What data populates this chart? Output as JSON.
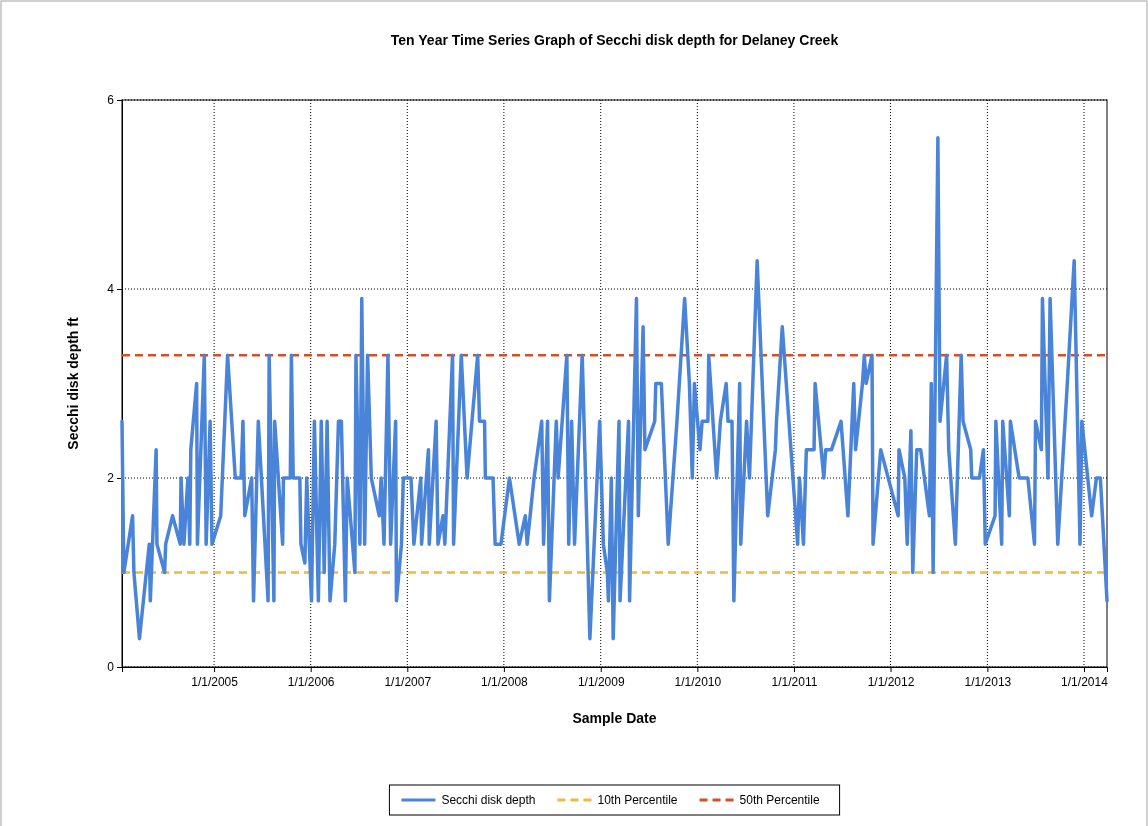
{
  "chart_data": {
    "type": "line",
    "title": "Ten Year Time Series Graph of Secchi disk depth for Delaney Creek",
    "xlabel": "Sample Date",
    "ylabel": "Secchi disk depth ft",
    "xlim": [
      "2004-01-19",
      "2014-03-29"
    ],
    "xticks": [
      {
        "value": "2005-01-01",
        "label": "1/1/2005"
      },
      {
        "value": "2006-01-01",
        "label": "1/1/2006"
      },
      {
        "value": "2007-01-01",
        "label": "1/1/2007"
      },
      {
        "value": "2008-01-01",
        "label": "1/1/2008"
      },
      {
        "value": "2009-01-01",
        "label": "1/1/2009"
      },
      {
        "value": "2010-01-01",
        "label": "1/1/2010"
      },
      {
        "value": "2011-01-01",
        "label": "1/1/2011"
      },
      {
        "value": "2012-01-01",
        "label": "1/1/2012"
      },
      {
        "value": "2013-01-01",
        "label": "1/1/2013"
      },
      {
        "value": "2014-01-01",
        "label": "1/1/2014"
      }
    ],
    "ylim": [
      0,
      6
    ],
    "yticks": [
      0,
      2,
      4,
      6
    ],
    "grid": true,
    "legend": "bottom",
    "line_style": "solid",
    "marker": "none",
    "ref_lines": [
      {
        "axis": "y",
        "value": 1.0,
        "label": "10th Percentile",
        "color": "#f0b840",
        "line_style": "dashed"
      },
      {
        "axis": "y",
        "value": 3.3,
        "label": "50th Percentile",
        "color": "#d0502a",
        "line_style": "dashed"
      }
    ],
    "series": [
      {
        "name": "Secchi disk depth",
        "color": "#4a84d8",
        "x": [
          "2004-01-19",
          "2004-01-26",
          "2004-02-28",
          "2004-03-04",
          "2004-03-25",
          "2004-05-01",
          "2004-05-05",
          "2004-05-27",
          "2004-05-30",
          "2004-06-28",
          "2004-07-02",
          "2004-07-28",
          "2004-08-26",
          "2004-08-29",
          "2004-09-09",
          "2004-09-24",
          "2004-10-01",
          "2004-10-05",
          "2004-10-27",
          "2004-10-30",
          "2004-11-25",
          "2004-12-02",
          "2004-12-17",
          "2004-12-24",
          "2005-01-26",
          "2005-02-21",
          "2005-03-22",
          "2005-04-13",
          "2005-04-20",
          "2005-04-27",
          "2005-05-23",
          "2005-05-30",
          "2005-06-17",
          "2005-07-24",
          "2005-07-28",
          "2005-08-15",
          "2005-08-18",
          "2005-09-17",
          "2005-09-20",
          "2005-10-16",
          "2005-10-20",
          "2005-10-27",
          "2005-11-21",
          "2005-11-25",
          "2005-12-10",
          "2005-12-17",
          "2006-01-04",
          "2006-01-15",
          "2006-01-30",
          "2006-02-10",
          "2006-02-21",
          "2006-03-04",
          "2006-03-15",
          "2006-04-02",
          "2006-04-16",
          "2006-04-27",
          "2006-05-12",
          "2006-05-19",
          "2006-06-17",
          "2006-06-21",
          "2006-07-06",
          "2006-07-13",
          "2006-07-24",
          "2006-08-04",
          "2006-08-18",
          "2006-09-17",
          "2006-09-24",
          "2006-10-05",
          "2006-10-20",
          "2006-10-30",
          "2006-11-18",
          "2006-11-21",
          "2006-12-10",
          "2006-12-17",
          "2007-01-15",
          "2007-01-26",
          "2007-02-21",
          "2007-02-24",
          "2007-03-22",
          "2007-03-25",
          "2007-04-20",
          "2007-04-27",
          "2007-05-16",
          "2007-05-23",
          "2007-06-21",
          "2007-06-25",
          "2007-07-24",
          "2007-08-15",
          "2007-09-24",
          "2007-10-01",
          "2007-10-20",
          "2007-10-23",
          "2007-11-21",
          "2007-11-29",
          "2007-12-21",
          "2008-01-22",
          "2008-02-28",
          "2008-03-22",
          "2008-03-29",
          "2008-04-24",
          "2008-05-23",
          "2008-05-30",
          "2008-06-14",
          "2008-06-21",
          "2008-07-17",
          "2008-07-24",
          "2008-08-26",
          "2008-09-02",
          "2008-09-13",
          "2008-09-24",
          "2008-10-23",
          "2008-11-21",
          "2008-12-28",
          "2009-01-11",
          "2009-01-26",
          "2009-01-30",
          "2009-02-10",
          "2009-02-17",
          "2009-03-11",
          "2009-03-15",
          "2009-04-16",
          "2009-04-20",
          "2009-05-16",
          "2009-05-23",
          "2009-06-10",
          "2009-06-17",
          "2009-07-24",
          "2009-07-28",
          "2009-08-18",
          "2009-09-13",
          "2009-10-16",
          "2009-11-14",
          "2009-12-02",
          "2009-12-13",
          "2009-12-21",
          "2010-01-11",
          "2010-01-19",
          "2010-02-10",
          "2010-02-13",
          "2010-03-15",
          "2010-03-29",
          "2010-04-20",
          "2010-04-27",
          "2010-05-12",
          "2010-05-19",
          "2010-06-10",
          "2010-06-14",
          "2010-07-06",
          "2010-07-17",
          "2010-08-15",
          "2010-09-24",
          "2010-10-23",
          "2010-10-27",
          "2010-11-18",
          "2011-01-15",
          "2011-01-22",
          "2011-02-06",
          "2011-02-17",
          "2011-03-18",
          "2011-03-22",
          "2011-04-24",
          "2011-05-01",
          "2011-05-23",
          "2011-06-28",
          "2011-07-24",
          "2011-08-15",
          "2011-08-22",
          "2011-09-17",
          "2011-09-24",
          "2011-10-01",
          "2011-10-23",
          "2011-10-27",
          "2011-11-25",
          "2012-01-30",
          "2012-02-02",
          "2012-02-24",
          "2012-03-04",
          "2012-03-18",
          "2012-03-25",
          "2012-04-09",
          "2012-04-24",
          "2012-05-27",
          "2012-06-03",
          "2012-06-10",
          "2012-06-28",
          "2012-07-06",
          "2012-07-31",
          "2012-08-08",
          "2012-09-02",
          "2012-09-24",
          "2012-10-01",
          "2012-10-30",
          "2012-11-03",
          "2012-12-02",
          "2012-12-17",
          "2012-12-24",
          "2013-01-30",
          "2013-02-02",
          "2013-02-24",
          "2013-02-28",
          "2013-03-25",
          "2013-03-29",
          "2013-05-01",
          "2013-06-03",
          "2013-06-28",
          "2013-07-02",
          "2013-07-24",
          "2013-07-28",
          "2013-08-18",
          "2013-08-26",
          "2013-09-24",
          "2013-10-30",
          "2013-11-25",
          "2013-12-17",
          "2013-12-24",
          "2014-01-30",
          "2014-02-17",
          "2014-03-04",
          "2014-03-29"
        ],
        "values": [
          2.6,
          1.0,
          1.6,
          1.0,
          0.3,
          1.3,
          0.7,
          2.3,
          1.3,
          1.0,
          1.3,
          1.6,
          1.3,
          2.0,
          1.3,
          2.0,
          1.3,
          2.3,
          3.0,
          1.3,
          3.3,
          1.3,
          2.6,
          1.3,
          1.6,
          3.3,
          2.0,
          2.0,
          2.6,
          1.6,
          2.0,
          0.7,
          2.6,
          0.7,
          3.3,
          0.7,
          2.6,
          1.3,
          2.0,
          2.0,
          3.3,
          2.0,
          2.0,
          1.3,
          1.1,
          2.0,
          0.7,
          2.6,
          0.7,
          2.6,
          1.0,
          2.6,
          0.7,
          1.3,
          2.6,
          2.6,
          0.7,
          2.0,
          1.0,
          3.3,
          1.3,
          3.9,
          1.3,
          3.3,
          2.0,
          1.6,
          2.0,
          1.3,
          3.3,
          1.3,
          2.6,
          0.7,
          1.3,
          2.0,
          2.0,
          1.3,
          2.0,
          1.3,
          2.3,
          1.3,
          2.6,
          1.3,
          1.6,
          1.3,
          3.3,
          1.3,
          3.3,
          2.0,
          3.3,
          2.6,
          2.6,
          2.0,
          2.0,
          1.3,
          1.3,
          2.0,
          1.3,
          1.6,
          1.3,
          2.0,
          2.6,
          1.3,
          2.6,
          0.7,
          2.6,
          2.0,
          3.3,
          1.3,
          2.6,
          1.3,
          3.3,
          0.3,
          2.6,
          1.3,
          1.0,
          0.7,
          2.0,
          0.3,
          2.6,
          0.7,
          2.6,
          0.7,
          3.9,
          1.6,
          3.6,
          2.3,
          2.6,
          3.0,
          3.0,
          1.3,
          2.6,
          3.9,
          3.0,
          2.0,
          3.0,
          2.3,
          2.6,
          2.6,
          3.3,
          2.0,
          2.6,
          3.0,
          2.6,
          2.6,
          0.7,
          3.0,
          1.3,
          2.6,
          2.0,
          4.3,
          1.6,
          2.3,
          2.6,
          3.6,
          1.3,
          2.0,
          1.3,
          2.3,
          2.3,
          3.0,
          2.0,
          2.3,
          2.3,
          2.6,
          1.6,
          3.0,
          2.3,
          3.0,
          3.3,
          3.0,
          3.3,
          1.3,
          2.3,
          1.6,
          2.3,
          2.0,
          1.3,
          2.5,
          1.0,
          2.3,
          2.3,
          1.6,
          3.0,
          1.0,
          5.6,
          2.6,
          3.3,
          2.3,
          1.3,
          3.3,
          2.6,
          2.3,
          2.0,
          2.0,
          2.3,
          1.3,
          1.6,
          2.6,
          1.3,
          2.6,
          1.6,
          2.6,
          2.0,
          2.0,
          1.3,
          2.6,
          2.3,
          3.9,
          2.0,
          3.9,
          1.3,
          3.0,
          4.3,
          1.3,
          2.6,
          1.6,
          2.0,
          2.0,
          0.7
        ]
      }
    ]
  }
}
